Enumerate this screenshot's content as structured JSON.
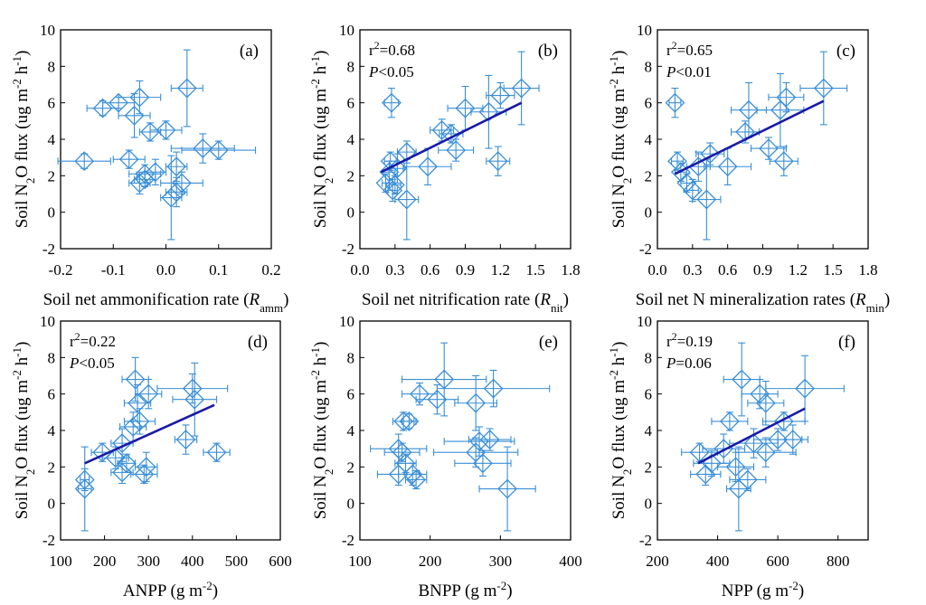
{
  "figure": {
    "y_axis_label": {
      "main": "Soil N",
      "sub": "2",
      "mid": "O flux (ug m",
      "sup1": "-2",
      "gap": " h",
      "sup2": "-1",
      "end": ")"
    },
    "series_color": "#3a8fd6",
    "fit_line_color": "#1a1aa8",
    "box_color": "#000000"
  },
  "chart_data": [
    {
      "type": "scatter",
      "panel_label": "(a)",
      "xlabel": {
        "text": "Soil net ammonification rate (",
        "italic": "R",
        "sub": "amm",
        "close": ")"
      },
      "xlim": [
        -0.2,
        0.2
      ],
      "xticks": [
        -0.2,
        -0.1,
        0.0,
        0.1,
        0.2
      ],
      "xtick_labels": [
        "-0.2",
        "-0.1",
        "0.0",
        "0.1",
        "0.2"
      ],
      "ylim": [
        -2,
        10
      ],
      "yticks": [
        -2,
        0,
        2,
        4,
        6,
        8,
        10
      ],
      "points": [
        {
          "x": -0.12,
          "y": 5.7,
          "xerr": 0.03,
          "yerr": 0.4
        },
        {
          "x": -0.09,
          "y": 6.0,
          "xerr": 0.03,
          "yerr": 0.3
        },
        {
          "x": -0.05,
          "y": 6.3,
          "xerr": 0.04,
          "yerr": 0.9
        },
        {
          "x": 0.04,
          "y": 6.8,
          "xerr": 0.03,
          "yerr": 2.1
        },
        {
          "x": -0.06,
          "y": 5.3,
          "xerr": 0.03,
          "yerr": 1.2
        },
        {
          "x": -0.03,
          "y": 4.4,
          "xerr": 0.02,
          "yerr": 0.5
        },
        {
          "x": 0.0,
          "y": 4.5,
          "xerr": 0.03,
          "yerr": 0.5
        },
        {
          "x": -0.155,
          "y": 2.8,
          "xerr": 0.05,
          "yerr": 0.4
        },
        {
          "x": -0.07,
          "y": 2.9,
          "xerr": 0.03,
          "yerr": 0.5
        },
        {
          "x": -0.04,
          "y": 2.1,
          "xerr": 0.03,
          "yerr": 0.5
        },
        {
          "x": -0.05,
          "y": 1.6,
          "xerr": 0.02,
          "yerr": 0.6
        },
        {
          "x": -0.02,
          "y": 2.2,
          "xerr": 0.02,
          "yerr": 0.7
        },
        {
          "x": 0.02,
          "y": 2.5,
          "xerr": 0.02,
          "yerr": 0.8
        },
        {
          "x": 0.03,
          "y": 1.6,
          "xerr": 0.04,
          "yerr": 0.6
        },
        {
          "x": 0.02,
          "y": 1.1,
          "xerr": 0.02,
          "yerr": 0.8
        },
        {
          "x": 0.01,
          "y": 0.8,
          "xerr": 0.02,
          "yerr": 2.3
        },
        {
          "x": 0.07,
          "y": 3.5,
          "xerr": 0.06,
          "yerr": 0.8
        },
        {
          "x": 0.1,
          "y": 3.4,
          "xerr": 0.07,
          "yerr": 0.5
        },
        {
          "x": -0.04,
          "y": 1.8,
          "xerr": 0.02,
          "yerr": 0.4
        }
      ]
    },
    {
      "type": "scatter",
      "panel_label": "(b)",
      "stats": {
        "r2": "=0.68",
        "p": "<0.05"
      },
      "xlabel": {
        "text": "Soil net nitrification rate (",
        "italic": "R",
        "sub": "nit",
        "close": ")"
      },
      "xlim": [
        0.0,
        1.8
      ],
      "xticks": [
        0.0,
        0.3,
        0.6,
        0.9,
        1.2,
        1.5,
        1.8
      ],
      "xtick_labels": [
        "0.0",
        "0.3",
        "0.6",
        "0.9",
        "1.2",
        "1.5",
        "1.8"
      ],
      "ylim": [
        -2,
        10
      ],
      "yticks": [
        -2,
        0,
        2,
        4,
        6,
        8,
        10
      ],
      "fit_line": {
        "x": [
          0.18,
          1.38
        ],
        "y": [
          2.2,
          6.0
        ]
      },
      "points": [
        {
          "x": 0.27,
          "y": 6.0,
          "xerr": 0.06,
          "yerr": 0.8
        },
        {
          "x": 0.25,
          "y": 2.2,
          "xerr": 0.05,
          "yerr": 0.6
        },
        {
          "x": 0.26,
          "y": 2.8,
          "xerr": 0.05,
          "yerr": 0.5
        },
        {
          "x": 0.22,
          "y": 1.6,
          "xerr": 0.03,
          "yerr": 0.5
        },
        {
          "x": 0.28,
          "y": 1.2,
          "xerr": 0.04,
          "yerr": 0.6
        },
        {
          "x": 0.3,
          "y": 1.5,
          "xerr": 0.05,
          "yerr": 0.5
        },
        {
          "x": 0.32,
          "y": 2.4,
          "xerr": 0.05,
          "yerr": 0.8
        },
        {
          "x": 0.4,
          "y": 3.3,
          "xerr": 0.08,
          "yerr": 0.6
        },
        {
          "x": 0.4,
          "y": 0.7,
          "xerr": 0.1,
          "yerr": 2.2
        },
        {
          "x": 0.58,
          "y": 2.5,
          "xerr": 0.2,
          "yerr": 1.0
        },
        {
          "x": 0.7,
          "y": 4.5,
          "xerr": 0.1,
          "yerr": 0.6
        },
        {
          "x": 0.82,
          "y": 3.4,
          "xerr": 0.15,
          "yerr": 0.6
        },
        {
          "x": 0.9,
          "y": 5.7,
          "xerr": 0.15,
          "yerr": 1.2
        },
        {
          "x": 1.1,
          "y": 5.5,
          "xerr": 0.15,
          "yerr": 2.0
        },
        {
          "x": 1.18,
          "y": 2.8,
          "xerr": 0.1,
          "yerr": 0.8
        },
        {
          "x": 1.2,
          "y": 6.4,
          "xerr": 0.12,
          "yerr": 0.7
        },
        {
          "x": 1.38,
          "y": 6.8,
          "xerr": 0.15,
          "yerr": 2.0
        },
        {
          "x": 0.78,
          "y": 4.3,
          "xerr": 0.1,
          "yerr": 0.5
        }
      ]
    },
    {
      "type": "scatter",
      "panel_label": "(c)",
      "stats": {
        "r2": "=0.65",
        "p": "<0.01"
      },
      "xlabel": {
        "text": "Soil net N mineralization rates (",
        "italic": "R",
        "sub": "min",
        "close": ")"
      },
      "xlim": [
        0.0,
        1.8
      ],
      "xticks": [
        0.0,
        0.3,
        0.6,
        0.9,
        1.2,
        1.5,
        1.8
      ],
      "xtick_labels": [
        "0.0",
        "0.3",
        "0.6",
        "0.9",
        "1.2",
        "1.5",
        "1.8"
      ],
      "ylim": [
        -2,
        10
      ],
      "yticks": [
        -2,
        0,
        2,
        4,
        6,
        8,
        10
      ],
      "fit_line": {
        "x": [
          0.15,
          1.42
        ],
        "y": [
          2.1,
          6.1
        ]
      },
      "points": [
        {
          "x": 0.15,
          "y": 6.0,
          "xerr": 0.05,
          "yerr": 0.8
        },
        {
          "x": 0.17,
          "y": 2.8,
          "xerr": 0.05,
          "yerr": 0.5
        },
        {
          "x": 0.2,
          "y": 2.2,
          "xerr": 0.05,
          "yerr": 0.5
        },
        {
          "x": 0.25,
          "y": 1.6,
          "xerr": 0.05,
          "yerr": 0.5
        },
        {
          "x": 0.3,
          "y": 1.2,
          "xerr": 0.05,
          "yerr": 0.6
        },
        {
          "x": 0.35,
          "y": 2.5,
          "xerr": 0.1,
          "yerr": 0.8
        },
        {
          "x": 0.42,
          "y": 0.7,
          "xerr": 0.12,
          "yerr": 2.2
        },
        {
          "x": 0.45,
          "y": 3.2,
          "xerr": 0.12,
          "yerr": 0.6
        },
        {
          "x": 0.6,
          "y": 2.5,
          "xerr": 0.2,
          "yerr": 1.0
        },
        {
          "x": 0.75,
          "y": 4.4,
          "xerr": 0.12,
          "yerr": 0.6
        },
        {
          "x": 0.78,
          "y": 5.6,
          "xerr": 0.15,
          "yerr": 1.5
        },
        {
          "x": 0.95,
          "y": 3.5,
          "xerr": 0.15,
          "yerr": 0.6
        },
        {
          "x": 1.05,
          "y": 5.6,
          "xerr": 0.2,
          "yerr": 2.0
        },
        {
          "x": 1.08,
          "y": 2.8,
          "xerr": 0.12,
          "yerr": 0.8
        },
        {
          "x": 1.1,
          "y": 6.3,
          "xerr": 0.15,
          "yerr": 0.8
        },
        {
          "x": 1.42,
          "y": 6.8,
          "xerr": 0.2,
          "yerr": 2.0
        }
      ]
    },
    {
      "type": "scatter",
      "panel_label": "(d)",
      "stats": {
        "r2": "=0.22",
        "p": "<0.05"
      },
      "xlabel": {
        "text": "ANPP (g m",
        "sup": "-2",
        "close": ")"
      },
      "xlim": [
        100,
        600
      ],
      "xticks": [
        100,
        200,
        300,
        400,
        500,
        600
      ],
      "xtick_labels": [
        "100",
        "200",
        "300",
        "400",
        "500",
        "600"
      ],
      "ylim": [
        -2,
        10
      ],
      "yticks": [
        -2,
        0,
        2,
        4,
        6,
        8,
        10
      ],
      "fit_line": {
        "x": [
          155,
          450
        ],
        "y": [
          2.2,
          5.4
        ]
      },
      "points": [
        {
          "x": 155,
          "y": 0.8,
          "xerr": 15,
          "yerr": 2.3
        },
        {
          "x": 155,
          "y": 1.3,
          "xerr": 10,
          "yerr": 0.6
        },
        {
          "x": 195,
          "y": 2.8,
          "xerr": 25,
          "yerr": 0.5
        },
        {
          "x": 225,
          "y": 2.5,
          "xerr": 30,
          "yerr": 0.6
        },
        {
          "x": 240,
          "y": 1.7,
          "xerr": 25,
          "yerr": 0.6
        },
        {
          "x": 240,
          "y": 3.3,
          "xerr": 25,
          "yerr": 0.8
        },
        {
          "x": 250,
          "y": 2.2,
          "xerr": 20,
          "yerr": 0.5
        },
        {
          "x": 265,
          "y": 4.2,
          "xerr": 30,
          "yerr": 0.8
        },
        {
          "x": 270,
          "y": 6.8,
          "xerr": 30,
          "yerr": 1.2
        },
        {
          "x": 275,
          "y": 5.5,
          "xerr": 30,
          "yerr": 1.0
        },
        {
          "x": 280,
          "y": 4.5,
          "xerr": 35,
          "yerr": 0.7
        },
        {
          "x": 290,
          "y": 1.6,
          "xerr": 30,
          "yerr": 0.5
        },
        {
          "x": 295,
          "y": 2.0,
          "xerr": 25,
          "yerr": 0.8
        },
        {
          "x": 300,
          "y": 6.0,
          "xerr": 30,
          "yerr": 0.8
        },
        {
          "x": 385,
          "y": 3.5,
          "xerr": 25,
          "yerr": 0.8
        },
        {
          "x": 400,
          "y": 6.3,
          "xerr": 80,
          "yerr": 0.8
        },
        {
          "x": 405,
          "y": 5.7,
          "xerr": 50,
          "yerr": 2.0
        },
        {
          "x": 455,
          "y": 2.8,
          "xerr": 30,
          "yerr": 0.5
        }
      ]
    },
    {
      "type": "scatter",
      "panel_label": "(e)",
      "xlabel": {
        "text": "BNPP (g m",
        "sup": "-2",
        "close": ")"
      },
      "xlim": [
        100,
        400
      ],
      "xticks": [
        100,
        200,
        300,
        400
      ],
      "xtick_labels": [
        "100",
        "200",
        "300",
        "400"
      ],
      "ylim": [
        -2,
        10
      ],
      "yticks": [
        -2,
        0,
        2,
        4,
        6,
        8,
        10
      ],
      "points": [
        {
          "x": 155,
          "y": 3.0,
          "xerr": 40,
          "yerr": 0.8
        },
        {
          "x": 155,
          "y": 1.6,
          "xerr": 30,
          "yerr": 0.6
        },
        {
          "x": 160,
          "y": 2.8,
          "xerr": 25,
          "yerr": 0.5
        },
        {
          "x": 162,
          "y": 4.5,
          "xerr": 15,
          "yerr": 0.5
        },
        {
          "x": 170,
          "y": 4.5,
          "xerr": 10,
          "yerr": 0.4
        },
        {
          "x": 165,
          "y": 2.2,
          "xerr": 15,
          "yerr": 0.5
        },
        {
          "x": 175,
          "y": 1.6,
          "xerr": 20,
          "yerr": 0.6
        },
        {
          "x": 180,
          "y": 1.3,
          "xerr": 15,
          "yerr": 0.5
        },
        {
          "x": 185,
          "y": 6.0,
          "xerr": 25,
          "yerr": 0.6
        },
        {
          "x": 210,
          "y": 5.7,
          "xerr": 30,
          "yerr": 0.8
        },
        {
          "x": 220,
          "y": 6.8,
          "xerr": 60,
          "yerr": 2.0
        },
        {
          "x": 265,
          "y": 5.5,
          "xerr": 30,
          "yerr": 1.5
        },
        {
          "x": 265,
          "y": 2.8,
          "xerr": 60,
          "yerr": 0.8
        },
        {
          "x": 270,
          "y": 3.4,
          "xerr": 50,
          "yerr": 0.8
        },
        {
          "x": 275,
          "y": 2.2,
          "xerr": 40,
          "yerr": 0.7
        },
        {
          "x": 285,
          "y": 3.5,
          "xerr": 30,
          "yerr": 0.6
        },
        {
          "x": 290,
          "y": 6.3,
          "xerr": 80,
          "yerr": 1.0
        },
        {
          "x": 310,
          "y": 0.8,
          "xerr": 40,
          "yerr": 2.3
        }
      ]
    },
    {
      "type": "scatter",
      "panel_label": "(f)",
      "stats": {
        "r2": "=0.19",
        "p": "=0.06"
      },
      "xlabel": {
        "text": "NPP (g m",
        "sup": "-2",
        "close": ")"
      },
      "xlim": [
        200,
        900
      ],
      "xticks": [
        200,
        400,
        600,
        800
      ],
      "xtick_labels": [
        "200",
        "400",
        "600",
        "800"
      ],
      "ylim": [
        -2,
        10
      ],
      "yticks": [
        -2,
        0,
        2,
        4,
        6,
        8,
        10
      ],
      "fit_line": {
        "x": [
          335,
          690
        ],
        "y": [
          2.2,
          5.2
        ]
      },
      "points": [
        {
          "x": 340,
          "y": 2.8,
          "xerr": 60,
          "yerr": 0.5
        },
        {
          "x": 360,
          "y": 1.6,
          "xerr": 50,
          "yerr": 0.6
        },
        {
          "x": 380,
          "y": 2.2,
          "xerr": 60,
          "yerr": 0.7
        },
        {
          "x": 420,
          "y": 3.0,
          "xerr": 70,
          "yerr": 0.8
        },
        {
          "x": 440,
          "y": 4.5,
          "xerr": 60,
          "yerr": 0.5
        },
        {
          "x": 460,
          "y": 2.0,
          "xerr": 60,
          "yerr": 0.8
        },
        {
          "x": 470,
          "y": 0.8,
          "xerr": 40,
          "yerr": 2.3
        },
        {
          "x": 480,
          "y": 6.8,
          "xerr": 60,
          "yerr": 2.0
        },
        {
          "x": 500,
          "y": 1.3,
          "xerr": 60,
          "yerr": 0.6
        },
        {
          "x": 520,
          "y": 3.3,
          "xerr": 80,
          "yerr": 0.8
        },
        {
          "x": 540,
          "y": 6.0,
          "xerr": 60,
          "yerr": 0.8
        },
        {
          "x": 560,
          "y": 5.5,
          "xerr": 60,
          "yerr": 1.2
        },
        {
          "x": 560,
          "y": 2.8,
          "xerr": 100,
          "yerr": 0.8
        },
        {
          "x": 600,
          "y": 3.5,
          "xerr": 80,
          "yerr": 0.6
        },
        {
          "x": 620,
          "y": 4.5,
          "xerr": 70,
          "yerr": 0.5
        },
        {
          "x": 650,
          "y": 3.5,
          "xerr": 50,
          "yerr": 0.8
        },
        {
          "x": 690,
          "y": 6.3,
          "xerr": 130,
          "yerr": 1.8
        }
      ]
    }
  ]
}
